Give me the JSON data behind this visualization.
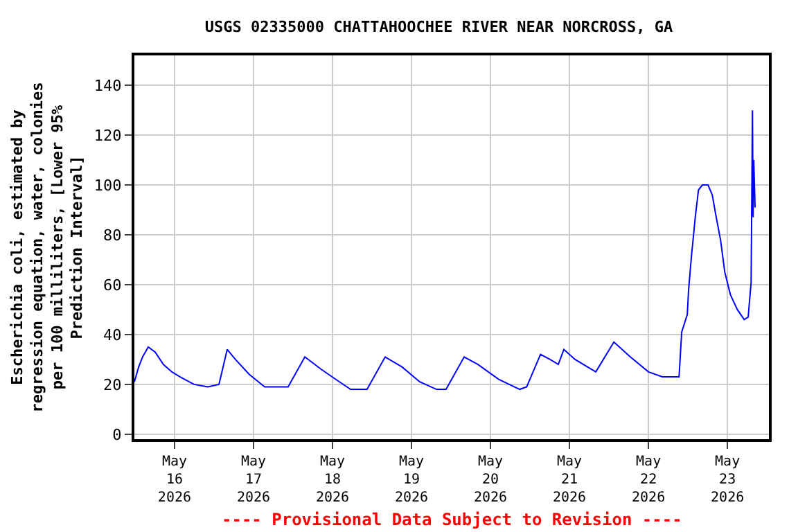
{
  "chart_data": {
    "type": "line",
    "title": "USGS 02335000 CHATTAHOOCHEE RIVER NEAR NORCROSS, GA",
    "ylabel": "Escherichia coli, estimated by\nregression equation, water, colonies\nper 100 milliliters, [Lower 95%\nPrediction Interval]",
    "annotations": [
      "---- Provisional Data Subject to Revision ----"
    ],
    "x": [
      "2026-05-15T11:48",
      "2026-05-15T13:06",
      "2026-05-15T14:18",
      "2026-05-15T16:00",
      "2026-05-15T18:06",
      "2026-05-15T20:36",
      "2026-05-15T23:12",
      "2026-05-16T01:42",
      "2026-05-16T05:54",
      "2026-05-16T10:06",
      "2026-05-16T13:30",
      "2026-05-16T16:00",
      "2026-05-16T18:30",
      "2026-05-16T22:42",
      "2026-05-17T03:24",
      "2026-05-17T10:30",
      "2026-05-17T15:36",
      "2026-05-17T20:36",
      "2026-05-18T02:06",
      "2026-05-18T05:30",
      "2026-05-18T10:30",
      "2026-05-18T16:00",
      "2026-05-18T21:06",
      "2026-05-19T02:30",
      "2026-05-19T07:36",
      "2026-05-19T10:30",
      "2026-05-19T16:00",
      "2026-05-19T20:12",
      "2026-05-20T02:30",
      "2026-05-20T08:54",
      "2026-05-20T11:00",
      "2026-05-20T15:12",
      "2026-05-20T18:06",
      "2026-05-20T20:36",
      "2026-05-20T22:18",
      "2026-05-21T01:42",
      "2026-05-21T08:00",
      "2026-05-21T13:30",
      "2026-05-21T18:30",
      "2026-05-22T00:00",
      "2026-05-22T04:12",
      "2026-05-22T09:18",
      "2026-05-22T10:06",
      "2026-05-22T11:48",
      "2026-05-22T12:12",
      "2026-05-22T13:06",
      "2026-05-22T14:18",
      "2026-05-22T15:12",
      "2026-05-22T16:24",
      "2026-05-22T18:06",
      "2026-05-22T19:24",
      "2026-05-22T20:36",
      "2026-05-22T21:54",
      "2026-05-22T23:12",
      "2026-05-23T00:54",
      "2026-05-23T03:00",
      "2026-05-23T05:06",
      "2026-05-23T06:18",
      "2026-05-23T07:12",
      "2026-05-23T07:36",
      "2026-05-23T07:48",
      "2026-05-23T08:00",
      "2026-05-23T08:24"
    ],
    "series": [
      {
        "color": "#0000ff",
        "values": [
          21,
          27,
          31,
          35,
          33,
          28,
          25,
          23,
          20,
          19,
          20,
          34,
          30,
          24,
          19,
          19,
          31,
          26,
          21,
          18,
          18,
          31,
          27,
          21,
          18,
          18,
          31,
          28,
          22,
          18,
          19,
          32,
          30,
          28,
          34,
          30,
          25,
          37,
          31,
          25,
          23,
          23,
          41,
          48,
          58,
          72,
          88,
          98,
          100,
          100,
          96,
          87,
          78,
          65,
          56,
          50,
          46,
          47,
          61,
          130,
          87,
          110,
          91
        ]
      }
    ],
    "xlim": [
      "2026-05-15T11:48",
      "2026-05-23T12:36"
    ],
    "xticks": [
      {
        "value": "2026-05-16",
        "label": "May\n16\n2026"
      },
      {
        "value": "2026-05-17",
        "label": "May\n17\n2026"
      },
      {
        "value": "2026-05-18",
        "label": "May\n18\n2026"
      },
      {
        "value": "2026-05-19",
        "label": "May\n19\n2026"
      },
      {
        "value": "2026-05-20",
        "label": "May\n20\n2026"
      },
      {
        "value": "2026-05-21",
        "label": "May\n21\n2026"
      },
      {
        "value": "2026-05-22",
        "label": "May\n22\n2026"
      },
      {
        "value": "2026-05-23",
        "label": "May\n23\n2026"
      }
    ],
    "ylim": [
      -2,
      152
    ],
    "yticks": [
      0,
      20,
      40,
      60,
      80,
      100,
      120,
      140
    ],
    "grid": true,
    "marker": "none",
    "line_style": "solid"
  }
}
